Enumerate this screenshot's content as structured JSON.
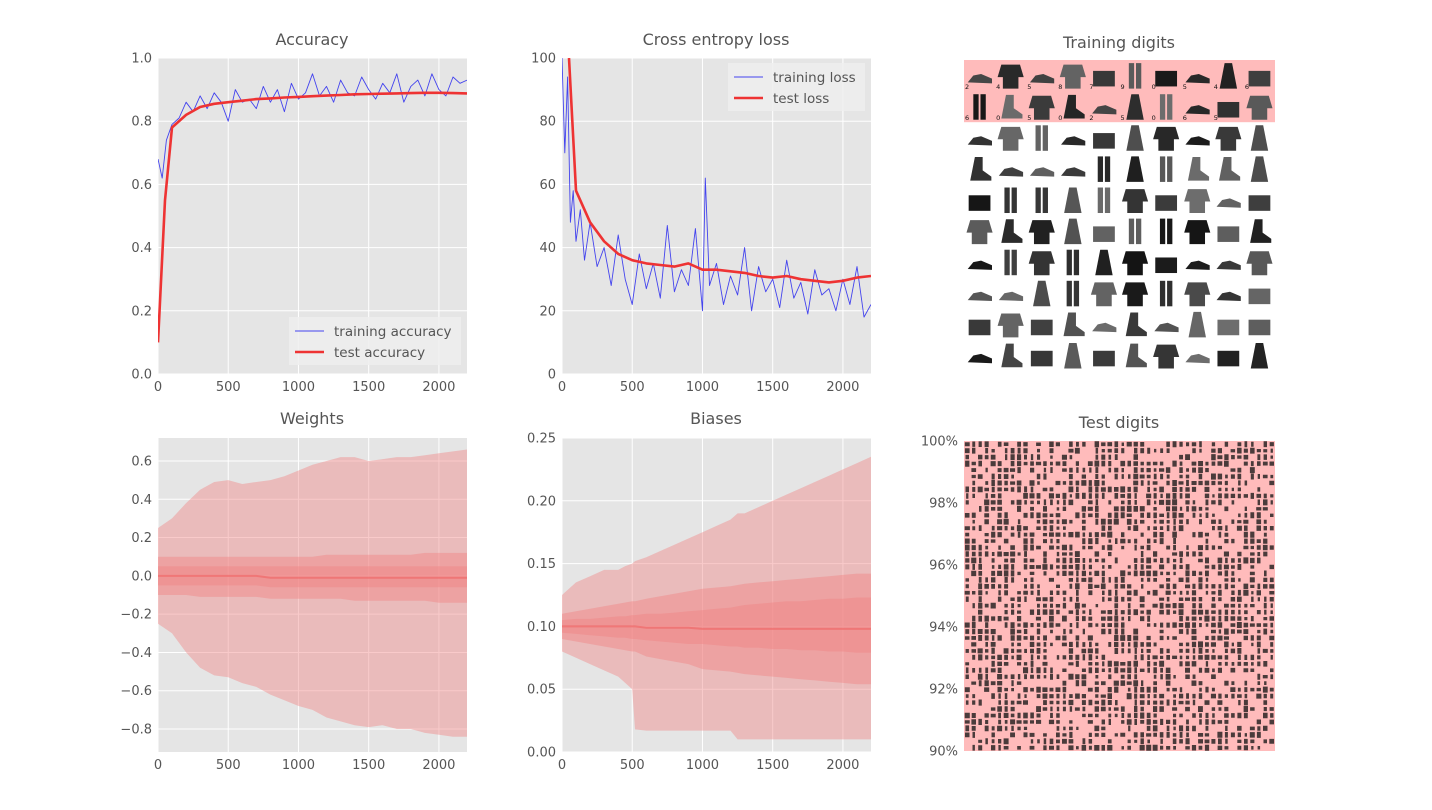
{
  "colors": {
    "panel_bg": "#e5e5e5",
    "grid": "#ffffff",
    "training": "#4444ee",
    "test": "#ee3333",
    "band": "#f08080",
    "tile_bg": "#ffbbbb",
    "text": "#555555"
  },
  "chart_data": [
    {
      "type": "line",
      "title": "Accuracy",
      "xlim": [
        0,
        2200
      ],
      "ylim": [
        0,
        1
      ],
      "xticks": [
        "0",
        "500",
        "1000",
        "1500",
        "2000"
      ],
      "yticks": [
        "0.0",
        "0.2",
        "0.4",
        "0.6",
        "0.8",
        "1.0"
      ],
      "grid": true,
      "legend_position": "bottom-right",
      "series": [
        {
          "name": "training accuracy",
          "style": "thin",
          "x": [
            0,
            30,
            60,
            100,
            150,
            200,
            250,
            300,
            350,
            400,
            450,
            500,
            550,
            600,
            650,
            700,
            750,
            800,
            850,
            900,
            950,
            1000,
            1050,
            1100,
            1150,
            1200,
            1250,
            1300,
            1350,
            1400,
            1450,
            1500,
            1550,
            1600,
            1650,
            1700,
            1750,
            1800,
            1850,
            1900,
            1950,
            2000,
            2050,
            2100,
            2150,
            2200
          ],
          "values": [
            0.68,
            0.62,
            0.74,
            0.79,
            0.81,
            0.86,
            0.83,
            0.88,
            0.84,
            0.89,
            0.86,
            0.8,
            0.9,
            0.86,
            0.87,
            0.84,
            0.91,
            0.86,
            0.9,
            0.83,
            0.92,
            0.87,
            0.89,
            0.95,
            0.88,
            0.91,
            0.86,
            0.93,
            0.89,
            0.88,
            0.94,
            0.9,
            0.87,
            0.92,
            0.89,
            0.95,
            0.86,
            0.91,
            0.93,
            0.88,
            0.95,
            0.9,
            0.88,
            0.94,
            0.92,
            0.93
          ]
        },
        {
          "name": "test accuracy",
          "style": "thick",
          "x": [
            0,
            50,
            100,
            200,
            300,
            400,
            500,
            600,
            700,
            800,
            900,
            1000,
            1100,
            1200,
            1300,
            1400,
            1500,
            1600,
            1700,
            1800,
            1900,
            2000,
            2100,
            2200
          ],
          "values": [
            0.1,
            0.55,
            0.78,
            0.82,
            0.845,
            0.855,
            0.86,
            0.865,
            0.87,
            0.872,
            0.875,
            0.877,
            0.879,
            0.881,
            0.883,
            0.885,
            0.886,
            0.887,
            0.888,
            0.889,
            0.89,
            0.89,
            0.889,
            0.888
          ]
        }
      ]
    },
    {
      "type": "line",
      "title": "Cross entropy loss",
      "xlim": [
        0,
        2200
      ],
      "ylim": [
        0,
        100
      ],
      "xticks": [
        "0",
        "500",
        "1000",
        "1500",
        "2000"
      ],
      "yticks": [
        "0",
        "20",
        "40",
        "60",
        "80",
        "100"
      ],
      "grid": true,
      "legend_position": "top-right",
      "series": [
        {
          "name": "training loss",
          "style": "thin",
          "x": [
            0,
            20,
            40,
            60,
            80,
            100,
            130,
            160,
            200,
            250,
            300,
            350,
            400,
            450,
            500,
            550,
            600,
            650,
            700,
            750,
            800,
            850,
            900,
            950,
            1000,
            1020,
            1050,
            1100,
            1150,
            1200,
            1250,
            1300,
            1350,
            1400,
            1450,
            1500,
            1550,
            1600,
            1650,
            1700,
            1750,
            1800,
            1850,
            1900,
            1950,
            2000,
            2050,
            2100,
            2150,
            2200
          ],
          "values": [
            100,
            70,
            94,
            48,
            58,
            42,
            52,
            36,
            48,
            34,
            40,
            28,
            44,
            30,
            22,
            38,
            27,
            35,
            24,
            47,
            26,
            33,
            28,
            46,
            20,
            62,
            28,
            35,
            22,
            31,
            25,
            40,
            20,
            34,
            26,
            30,
            21,
            36,
            24,
            29,
            19,
            33,
            25,
            27,
            20,
            30,
            22,
            34,
            18,
            22
          ]
        },
        {
          "name": "test loss",
          "style": "thick",
          "x": [
            50,
            100,
            200,
            300,
            400,
            500,
            600,
            700,
            800,
            900,
            1000,
            1100,
            1200,
            1300,
            1400,
            1500,
            1600,
            1700,
            1800,
            1900,
            2000,
            2100,
            2200
          ],
          "values": [
            100,
            58,
            48,
            42,
            38,
            36,
            35,
            34.5,
            34,
            35,
            33,
            33,
            32.5,
            32,
            31,
            30.5,
            31,
            30,
            29.5,
            29,
            29.5,
            30.5,
            31
          ]
        }
      ]
    },
    {
      "type": "area",
      "title": "Weights",
      "xlim": [
        0,
        2200
      ],
      "ylim": [
        -0.92,
        0.72
      ],
      "xticks": [
        "0",
        "500",
        "1000",
        "1500",
        "2000"
      ],
      "yticks": [
        "−0.8",
        "−0.6",
        "−0.4",
        "−0.2",
        "0.0",
        "0.2",
        "0.4",
        "0.6"
      ],
      "grid": true,
      "x": [
        0,
        100,
        200,
        300,
        400,
        500,
        600,
        700,
        800,
        900,
        1000,
        1100,
        1200,
        1300,
        1400,
        1500,
        1600,
        1700,
        1800,
        1900,
        2000,
        2100,
        2200
      ],
      "bands": [
        {
          "upper": [
            0.25,
            0.3,
            0.38,
            0.45,
            0.49,
            0.5,
            0.48,
            0.49,
            0.5,
            0.52,
            0.55,
            0.58,
            0.6,
            0.62,
            0.62,
            0.6,
            0.61,
            0.62,
            0.62,
            0.63,
            0.64,
            0.65,
            0.66
          ],
          "lower": [
            -0.25,
            -0.3,
            -0.4,
            -0.48,
            -0.52,
            -0.53,
            -0.56,
            -0.58,
            -0.62,
            -0.65,
            -0.68,
            -0.7,
            -0.74,
            -0.76,
            -0.78,
            -0.79,
            -0.78,
            -0.8,
            -0.8,
            -0.82,
            -0.83,
            -0.84,
            -0.84
          ]
        },
        {
          "upper": [
            0.1,
            0.1,
            0.1,
            0.1,
            0.1,
            0.1,
            0.1,
            0.1,
            0.1,
            0.1,
            0.1,
            0.1,
            0.11,
            0.11,
            0.11,
            0.11,
            0.11,
            0.11,
            0.11,
            0.12,
            0.12,
            0.12,
            0.12
          ],
          "lower": [
            -0.1,
            -0.1,
            -0.1,
            -0.11,
            -0.11,
            -0.11,
            -0.11,
            -0.11,
            -0.12,
            -0.12,
            -0.12,
            -0.12,
            -0.12,
            -0.12,
            -0.13,
            -0.13,
            -0.13,
            -0.13,
            -0.13,
            -0.13,
            -0.14,
            -0.14,
            -0.14
          ]
        },
        {
          "upper": [
            0.05,
            0.05,
            0.05,
            0.05,
            0.05,
            0.05,
            0.05,
            0.05,
            0.05,
            0.05,
            0.05,
            0.05,
            0.05,
            0.05,
            0.05,
            0.05,
            0.05,
            0.05,
            0.05,
            0.05,
            0.05,
            0.05,
            0.05
          ],
          "lower": [
            -0.05,
            -0.05,
            -0.05,
            -0.05,
            -0.05,
            -0.05,
            -0.05,
            -0.05,
            -0.06,
            -0.06,
            -0.06,
            -0.06,
            -0.06,
            -0.06,
            -0.06,
            -0.06,
            -0.06,
            -0.06,
            -0.06,
            -0.06,
            -0.06,
            -0.06,
            -0.06
          ]
        }
      ],
      "median": [
        0.0,
        0.0,
        0.0,
        0.0,
        0.0,
        0.0,
        0.0,
        0.0,
        -0.01,
        -0.01,
        -0.01,
        -0.01,
        -0.01,
        -0.01,
        -0.01,
        -0.01,
        -0.01,
        -0.01,
        -0.01,
        -0.01,
        -0.01,
        -0.01,
        -0.01
      ]
    },
    {
      "type": "area",
      "title": "Biases",
      "xlim": [
        0,
        2200
      ],
      "ylim": [
        0,
        0.25
      ],
      "xticks": [
        "0",
        "500",
        "1000",
        "1500",
        "2000"
      ],
      "yticks": [
        "0.00",
        "0.05",
        "0.10",
        "0.15",
        "0.20",
        "0.25"
      ],
      "grid": true,
      "x": [
        0,
        100,
        200,
        300,
        400,
        450,
        500,
        520,
        600,
        700,
        800,
        900,
        1000,
        1100,
        1200,
        1250,
        1300,
        1400,
        1500,
        1600,
        1700,
        1800,
        1900,
        2000,
        2100,
        2200
      ],
      "bands": [
        {
          "upper": [
            0.125,
            0.135,
            0.14,
            0.145,
            0.145,
            0.148,
            0.15,
            0.152,
            0.155,
            0.16,
            0.165,
            0.17,
            0.175,
            0.18,
            0.185,
            0.19,
            0.19,
            0.195,
            0.2,
            0.205,
            0.21,
            0.215,
            0.22,
            0.225,
            0.23,
            0.235
          ],
          "lower": [
            0.08,
            0.075,
            0.07,
            0.065,
            0.06,
            0.055,
            0.05,
            0.018,
            0.017,
            0.017,
            0.017,
            0.017,
            0.017,
            0.017,
            0.017,
            0.01,
            0.01,
            0.01,
            0.01,
            0.01,
            0.01,
            0.01,
            0.01,
            0.01,
            0.01,
            0.01
          ]
        },
        {
          "upper": [
            0.11,
            0.112,
            0.114,
            0.116,
            0.118,
            0.119,
            0.12,
            0.12,
            0.122,
            0.124,
            0.126,
            0.128,
            0.13,
            0.131,
            0.132,
            0.133,
            0.134,
            0.135,
            0.136,
            0.137,
            0.138,
            0.139,
            0.14,
            0.141,
            0.142,
            0.142
          ]
        },
        {
          "upper": [
            0.105,
            0.106,
            0.106,
            0.107,
            0.108,
            0.108,
            0.109,
            0.109,
            0.11,
            0.11,
            0.111,
            0.112,
            0.113,
            0.114,
            0.115,
            0.116,
            0.117,
            0.118,
            0.119,
            0.12,
            0.12,
            0.121,
            0.122,
            0.122,
            0.123,
            0.123
          ],
          "lower": [
            0.095,
            0.094,
            0.093,
            0.092,
            0.091,
            0.091,
            0.09,
            0.09,
            0.089,
            0.088,
            0.087,
            0.086,
            0.086,
            0.085,
            0.084,
            0.084,
            0.083,
            0.083,
            0.082,
            0.082,
            0.081,
            0.081,
            0.08,
            0.08,
            0.079,
            0.079
          ]
        }
      ],
      "median": [
        0.1,
        0.1,
        0.1,
        0.1,
        0.1,
        0.1,
        0.1,
        0.1,
        0.099,
        0.099,
        0.099,
        0.099,
        0.098,
        0.098,
        0.098,
        0.098,
        0.098,
        0.098,
        0.098,
        0.098,
        0.098,
        0.098,
        0.098,
        0.098,
        0.098,
        0.098
      ]
    },
    {
      "type": "image-grid",
      "title": "Training digits",
      "grid_size": [
        10,
        10
      ],
      "highlighted_rows": 2,
      "tile_labels": [
        "2",
        "4",
        "5",
        "8",
        "7",
        "9",
        "0",
        "5",
        "4",
        "6",
        "6",
        "0",
        "5",
        "0",
        "2",
        "5",
        "0",
        "6",
        "5"
      ]
    },
    {
      "type": "image-grid",
      "title": "Test digits",
      "grid_size": [
        48,
        48
      ],
      "ylim": [
        90,
        100
      ],
      "yticks": [
        "90%",
        "92%",
        "94%",
        "96%",
        "98%",
        "100%"
      ]
    }
  ]
}
